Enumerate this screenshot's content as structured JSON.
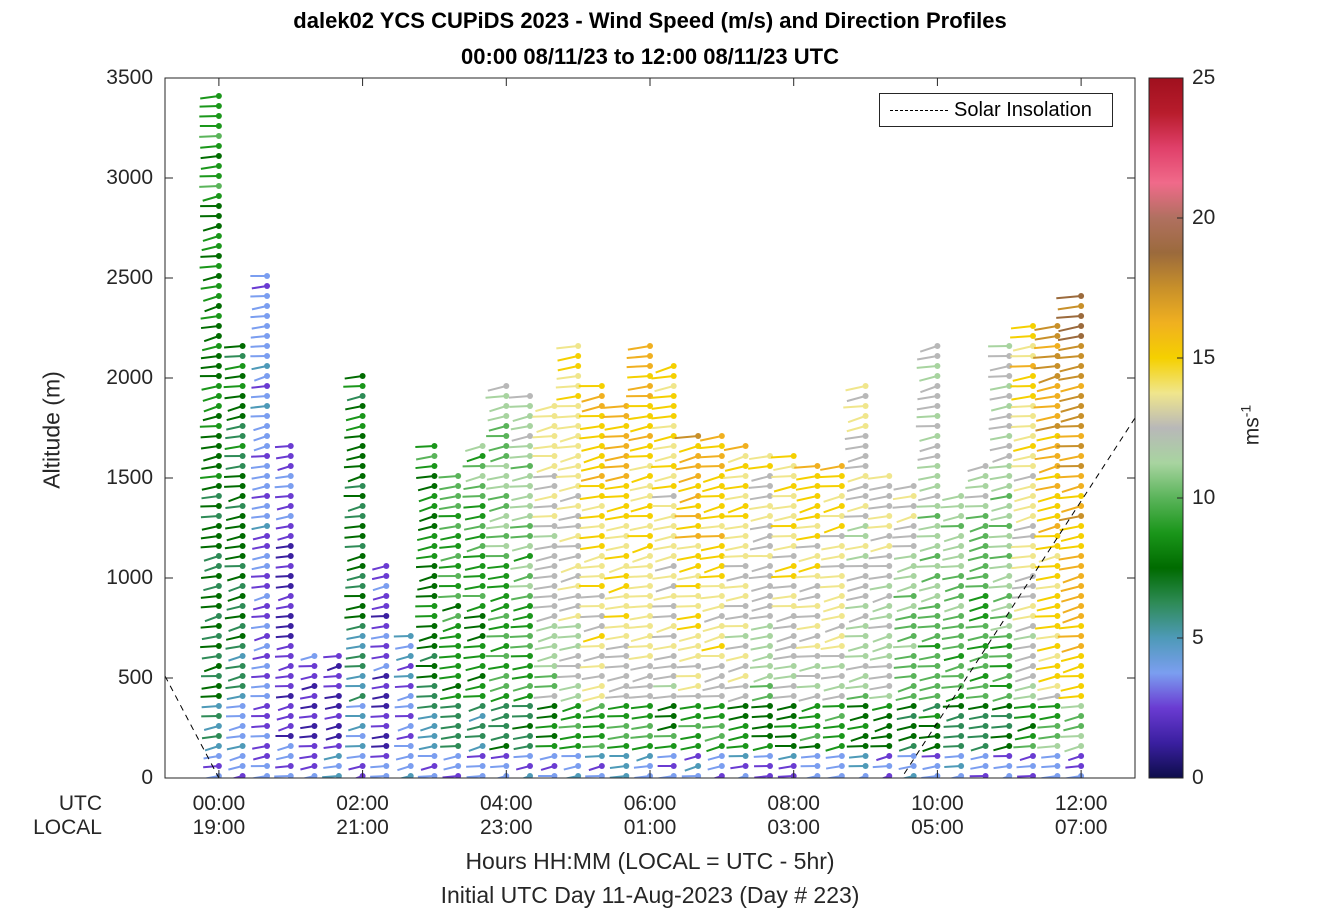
{
  "chart_data": {
    "type": "scatter",
    "title": "dalek02 YCS CUPiDS 2023 - Wind Speed (m/s) and Direction Profiles",
    "subtitle": "00:00 08/11/23 to 12:00 08/11/23  UTC",
    "xlabel": "Hours HH:MM  (LOCAL = UTC - 5hr)",
    "xlabel2": "Initial UTC Day 11-Aug-2023 (Day # 223)",
    "ylabel": "Altitude (m)",
    "ylim": [
      0,
      3500
    ],
    "xlim_hours": [
      -0.75,
      12.75
    ],
    "yticks": [
      "0",
      "500",
      "1000",
      "1500",
      "2000",
      "2500",
      "3000",
      "3500"
    ],
    "xtick_row_labels": {
      "utc": "UTC",
      "local": "LOCAL"
    },
    "xticks_utc": [
      "00:00",
      "02:00",
      "04:00",
      "06:00",
      "08:00",
      "10:00",
      "12:00"
    ],
    "xticks_local": [
      "19:00",
      "21:00",
      "23:00",
      "01:00",
      "03:00",
      "05:00",
      "07:00"
    ],
    "colorbar": {
      "label": "ms",
      "label_exponent": "-1",
      "range": [
        0,
        25
      ],
      "ticks": [
        "0",
        "5",
        "10",
        "15",
        "20",
        "25"
      ]
    },
    "legend": {
      "entry": "Solar Insolation",
      "placement": "top-right",
      "style": "dashed black line"
    },
    "solar_insolation_line": {
      "x_hours": [
        -0.75,
        0.0,
        9.5,
        12.75
      ],
      "y_altitude": [
        510,
        0,
        0,
        1800
      ]
    },
    "profile_times_hours": [
      0,
      0.33,
      0.67,
      1.0,
      1.33,
      1.67,
      2.0,
      2.33,
      2.67,
      3.0,
      3.33,
      3.67,
      4.0,
      4.33,
      4.67,
      5.0,
      5.33,
      5.67,
      6.0,
      6.33,
      6.67,
      7.0,
      7.33,
      7.67,
      8.0,
      8.33,
      8.67,
      9.0,
      9.33,
      9.67,
      10.0,
      10.33,
      10.67,
      11.0,
      11.33,
      11.67,
      12.0
    ],
    "profile_top_altitude_m": [
      3450,
      2200,
      2550,
      1700,
      650,
      620,
      2050,
      1100,
      750,
      1700,
      1550,
      1700,
      2000,
      1950,
      1900,
      2200,
      2000,
      1900,
      2200,
      2100,
      1750,
      1750,
      1700,
      1650,
      1650,
      1600,
      1600,
      2000,
      1550,
      1500,
      2200,
      1450,
      1600,
      2200,
      2300,
      2300,
      2450
    ],
    "profile_mean_speed_ms": [
      8,
      7,
      4,
      3,
      2.5,
      2.5,
      7,
      3,
      4,
      8,
      9,
      9,
      10,
      10,
      12,
      13,
      14,
      14,
      14,
      13,
      14,
      14,
      13,
      12,
      13,
      13,
      13,
      12,
      12,
      11,
      11,
      10,
      10,
      11,
      13,
      15,
      16
    ]
  },
  "colors": {
    "speed_colormap": [
      "#0d0d4a",
      "#3a1fa0",
      "#6a3bd2",
      "#7b9ef0",
      "#4e9ab8",
      "#2e8b57",
      "#006b00",
      "#1a961a",
      "#5ab45a",
      "#a8d4a0",
      "#b8b8b8",
      "#f0e68c",
      "#f5d000",
      "#f0b020",
      "#c8902a",
      "#9b6a3c",
      "#b07060",
      "#f06a8a",
      "#e0406a",
      "#b81c2c",
      "#a0101e"
    ]
  }
}
